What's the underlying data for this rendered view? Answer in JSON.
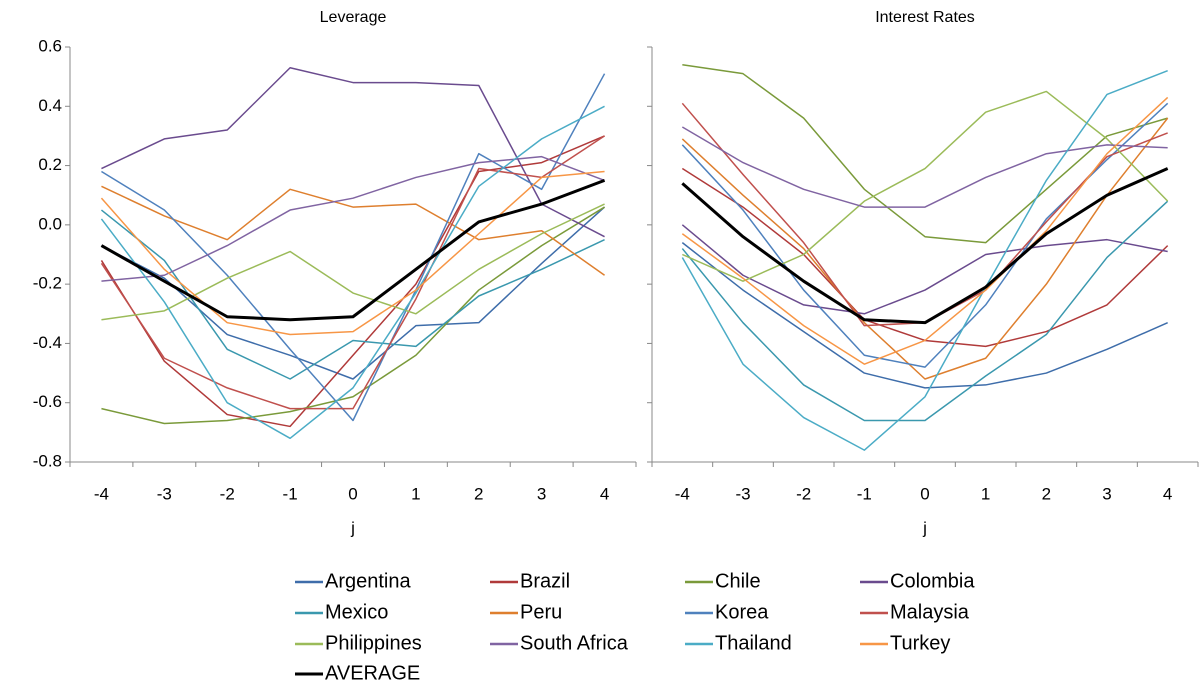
{
  "chart_data": [
    {
      "type": "line",
      "title": "Leverage",
      "x_label": "j",
      "categories": [
        "-4",
        "-3",
        "-2",
        "-1",
        "0",
        "1",
        "2",
        "3",
        "4"
      ],
      "ylim": [
        -0.8,
        0.6
      ],
      "yticks": [
        0.6,
        0.4,
        0.2,
        {
          "value": 0,
          "label": "0.0"
        },
        -0.2,
        -0.4,
        -0.6,
        -0.8
      ],
      "series": [
        {
          "name": "Argentina",
          "color": "#3e6daa",
          "values": [
            -0.07,
            -0.18,
            -0.37,
            -0.44,
            -0.52,
            -0.34,
            -0.33,
            -0.13,
            0.06
          ]
        },
        {
          "name": "Brazil",
          "color": "#b03a3a",
          "values": [
            -0.12,
            -0.46,
            -0.64,
            -0.68,
            -0.44,
            -0.2,
            0.18,
            0.21,
            0.3
          ]
        },
        {
          "name": "Chile",
          "color": "#7a9a3a",
          "values": [
            -0.62,
            -0.67,
            -0.66,
            -0.63,
            -0.58,
            -0.44,
            -0.22,
            -0.07,
            0.06
          ]
        },
        {
          "name": "Colombia",
          "color": "#6a4b8e",
          "values": [
            0.19,
            0.29,
            0.32,
            0.53,
            0.48,
            0.48,
            0.47,
            0.07,
            -0.04
          ]
        },
        {
          "name": "Mexico",
          "color": "#3a98ae",
          "values": [
            0.05,
            -0.12,
            -0.42,
            -0.52,
            -0.39,
            -0.41,
            -0.24,
            -0.15,
            -0.05
          ]
        },
        {
          "name": "Peru",
          "color": "#de7f2e",
          "values": [
            0.13,
            0.03,
            -0.05,
            0.12,
            0.06,
            0.07,
            -0.05,
            -0.02,
            -0.17
          ]
        },
        {
          "name": "Korea",
          "color": "#4f81bd",
          "values": [
            0.18,
            0.05,
            -0.17,
            -0.42,
            -0.66,
            -0.22,
            0.24,
            0.12,
            0.51
          ]
        },
        {
          "name": "Malaysia",
          "color": "#c0504d",
          "values": [
            -0.13,
            -0.45,
            -0.55,
            -0.62,
            -0.62,
            -0.25,
            0.19,
            0.16,
            0.3
          ]
        },
        {
          "name": "Philippines",
          "color": "#9bbb59",
          "values": [
            -0.32,
            -0.29,
            -0.18,
            -0.09,
            -0.23,
            -0.3,
            -0.15,
            -0.03,
            0.07
          ]
        },
        {
          "name": "South Africa",
          "color": "#8064a2",
          "values": [
            -0.19,
            -0.17,
            -0.07,
            0.05,
            0.09,
            0.16,
            0.21,
            0.23,
            0.15
          ]
        },
        {
          "name": "Thailand",
          "color": "#4bacc6",
          "values": [
            0.02,
            -0.26,
            -0.6,
            -0.72,
            -0.55,
            -0.23,
            0.13,
            0.29,
            0.4
          ]
        },
        {
          "name": "Turkey",
          "color": "#f79646",
          "values": [
            0.09,
            -0.15,
            -0.33,
            -0.37,
            -0.36,
            -0.22,
            -0.03,
            0.16,
            0.18
          ]
        },
        {
          "name": "AVERAGE",
          "color": "#000000",
          "linewidth": 3,
          "values": [
            -0.07,
            -0.19,
            -0.31,
            -0.32,
            -0.31,
            -0.15,
            0.01,
            0.07,
            0.15
          ]
        }
      ]
    },
    {
      "type": "line",
      "title": "Interest Rates",
      "x_label": "j",
      "categories": [
        "-4",
        "-3",
        "-2",
        "-1",
        "0",
        "1",
        "2",
        "3",
        "4"
      ],
      "ylim": [
        -0.8,
        0.6
      ],
      "yticks": [
        0.6,
        0.4,
        0.2,
        0,
        -0.2,
        -0.4,
        -0.6,
        -0.8
      ],
      "series": [
        {
          "color": "#3e6daa",
          "values": [
            -0.06,
            -0.22,
            -0.36,
            -0.5,
            -0.55,
            -0.54,
            -0.5,
            -0.42,
            -0.33
          ]
        },
        {
          "color": "#b03a3a",
          "values": [
            0.19,
            0.06,
            -0.1,
            -0.32,
            -0.39,
            -0.41,
            -0.36,
            -0.27,
            -0.07
          ]
        },
        {
          "color": "#7a9a3a",
          "values": [
            0.54,
            0.51,
            0.36,
            0.12,
            -0.04,
            -0.06,
            0.12,
            0.3,
            0.36
          ]
        },
        {
          "color": "#6a4b8e",
          "values": [
            0.0,
            -0.17,
            -0.27,
            -0.3,
            -0.22,
            -0.1,
            -0.07,
            -0.05,
            -0.09
          ]
        },
        {
          "color": "#3a98ae",
          "values": [
            -0.08,
            -0.33,
            -0.54,
            -0.66,
            -0.66,
            -0.51,
            -0.37,
            -0.11,
            0.08
          ]
        },
        {
          "color": "#de7f2e",
          "values": [
            0.29,
            0.1,
            -0.08,
            -0.33,
            -0.52,
            -0.45,
            -0.2,
            0.1,
            0.36
          ]
        },
        {
          "color": "#4f81bd",
          "values": [
            0.27,
            0.05,
            -0.22,
            -0.44,
            -0.48,
            -0.27,
            0.02,
            0.22,
            0.41
          ]
        },
        {
          "color": "#c0504d",
          "values": [
            0.41,
            0.17,
            -0.06,
            -0.34,
            -0.33,
            -0.22,
            0.01,
            0.23,
            0.31
          ]
        },
        {
          "color": "#9bbb59",
          "values": [
            -0.1,
            -0.19,
            -0.1,
            0.08,
            0.19,
            0.38,
            0.45,
            0.29,
            0.08
          ]
        },
        {
          "color": "#8064a2",
          "values": [
            0.33,
            0.21,
            0.12,
            0.06,
            0.06,
            0.16,
            0.24,
            0.27,
            0.26
          ]
        },
        {
          "color": "#4bacc6",
          "values": [
            -0.11,
            -0.47,
            -0.65,
            -0.76,
            -0.58,
            -0.21,
            0.15,
            0.44,
            0.52
          ]
        },
        {
          "color": "#f79646",
          "values": [
            -0.03,
            -0.18,
            -0.34,
            -0.47,
            -0.39,
            -0.22,
            -0.02,
            0.24,
            0.43
          ]
        },
        {
          "color": "#000000",
          "linewidth": 3,
          "values": [
            0.14,
            -0.04,
            -0.19,
            -0.32,
            -0.33,
            -0.21,
            -0.03,
            0.1,
            0.19
          ]
        }
      ]
    }
  ]
}
